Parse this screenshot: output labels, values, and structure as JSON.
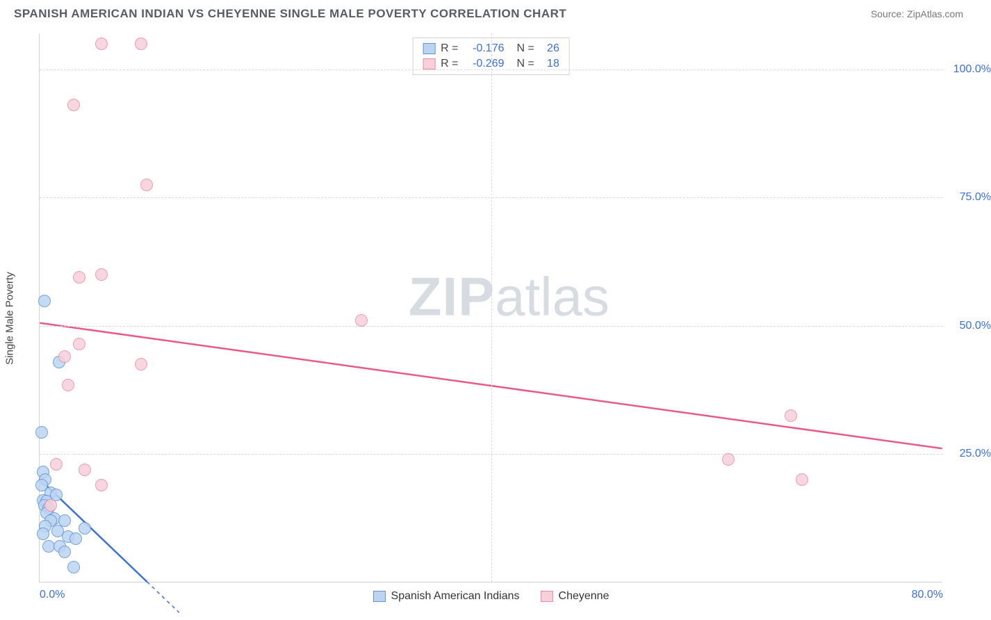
{
  "header": {
    "title": "SPANISH AMERICAN INDIAN VS CHEYENNE SINGLE MALE POVERTY CORRELATION CHART",
    "source_label": "Source: ",
    "source_name": "ZipAtlas.com"
  },
  "chart": {
    "type": "scatter",
    "ylabel": "Single Male Poverty",
    "xlim": [
      0,
      80
    ],
    "ylim": [
      0,
      107
    ],
    "x_ticks": [
      0,
      80
    ],
    "x_tick_labels": [
      "0.0%",
      "80.0%"
    ],
    "x_grid_at": [
      40
    ],
    "y_ticks": [
      25,
      50,
      75,
      100
    ],
    "y_tick_labels": [
      "25.0%",
      "50.0%",
      "75.0%",
      "100.0%"
    ],
    "marker_radius": 9,
    "marker_stroke_width": 1.5,
    "background_color": "#ffffff",
    "grid_color": "#d6d9df",
    "axis_color": "#cfd3da",
    "tick_label_color": "#3b6fd6",
    "watermark": "ZIPatlas",
    "series": [
      {
        "name": "Spanish American Indians",
        "fill": "#bcd4f2",
        "stroke": "#5e93d8",
        "line_color": "#3b6fd6",
        "line_width": 2.5,
        "trend": {
          "x1": 0,
          "y1": 20,
          "x2": 9.5,
          "y2": 0
        },
        "trend_dashed_extension": true,
        "points": [
          [
            0.4,
            54.8
          ],
          [
            0.2,
            29.3
          ],
          [
            1.7,
            43.0
          ],
          [
            0.3,
            21.5
          ],
          [
            0.5,
            20.0
          ],
          [
            0.2,
            19.0
          ],
          [
            1.0,
            17.5
          ],
          [
            1.5,
            17.0
          ],
          [
            0.3,
            16.0
          ],
          [
            0.6,
            15.8
          ],
          [
            0.4,
            15.0
          ],
          [
            0.8,
            14.5
          ],
          [
            0.6,
            13.5
          ],
          [
            1.3,
            12.5
          ],
          [
            1.0,
            12.0
          ],
          [
            2.2,
            12.0
          ],
          [
            0.5,
            11.0
          ],
          [
            1.6,
            10.0
          ],
          [
            0.3,
            9.5
          ],
          [
            2.5,
            9.0
          ],
          [
            3.2,
            8.5
          ],
          [
            0.8,
            7.0
          ],
          [
            1.8,
            7.0
          ],
          [
            4.0,
            10.5
          ],
          [
            2.2,
            6.0
          ],
          [
            3.0,
            3.0
          ]
        ]
      },
      {
        "name": "Cheyenne",
        "fill": "#f7d0da",
        "stroke": "#e98ca6",
        "line_color": "#e85b86",
        "line_width": 2.5,
        "trend": {
          "x1": 0,
          "y1": 50.5,
          "x2": 80,
          "y2": 26.0
        },
        "trend_dashed_extension": false,
        "points": [
          [
            5.5,
            105
          ],
          [
            9.0,
            105
          ],
          [
            3.0,
            93
          ],
          [
            9.5,
            77.5
          ],
          [
            5.5,
            60
          ],
          [
            3.5,
            59.5
          ],
          [
            3.5,
            46.5
          ],
          [
            9.0,
            42.5
          ],
          [
            2.2,
            44.0
          ],
          [
            2.5,
            38.5
          ],
          [
            28.5,
            51.0
          ],
          [
            66.5,
            32.5
          ],
          [
            61.0,
            24.0
          ],
          [
            67.5,
            20.0
          ],
          [
            1.5,
            23.0
          ],
          [
            4.0,
            22.0
          ],
          [
            5.5,
            19.0
          ],
          [
            1.0,
            15.0
          ]
        ]
      }
    ],
    "stats": [
      {
        "series_idx": 0,
        "r": "-0.176",
        "n": "26"
      },
      {
        "series_idx": 1,
        "r": "-0.269",
        "n": "18"
      }
    ],
    "labels": {
      "r_label": "R =",
      "n_label": "N ="
    }
  }
}
